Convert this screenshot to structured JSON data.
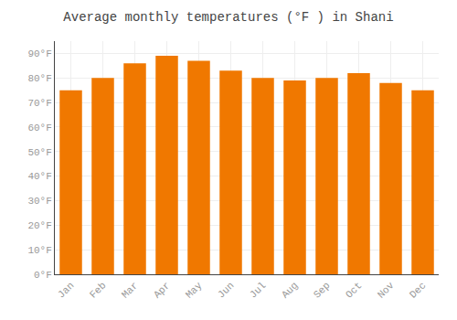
{
  "chart_data": {
    "type": "bar",
    "title": "Average monthly temperatures (°F ) in Shani",
    "categories": [
      "Jan",
      "Feb",
      "Mar",
      "Apr",
      "May",
      "Jun",
      "Jul",
      "Aug",
      "Sep",
      "Oct",
      "Nov",
      "Dec"
    ],
    "values": [
      75,
      80,
      86,
      89,
      87,
      83,
      80,
      79,
      80,
      82,
      78,
      75
    ],
    "color": "#F07800",
    "ylim": [
      0,
      95
    ],
    "yticks": [
      {
        "value": 0,
        "label": "0°F"
      },
      {
        "value": 10,
        "label": "10°F"
      },
      {
        "value": 20,
        "label": "20°F"
      },
      {
        "value": 30,
        "label": "30°F"
      },
      {
        "value": 40,
        "label": "40°F"
      },
      {
        "value": 50,
        "label": "50°F"
      },
      {
        "value": 60,
        "label": "60°F"
      },
      {
        "value": 70,
        "label": "70°F"
      },
      {
        "value": 80,
        "label": "80°F"
      },
      {
        "value": 90,
        "label": "90°F"
      }
    ],
    "grid": true
  }
}
